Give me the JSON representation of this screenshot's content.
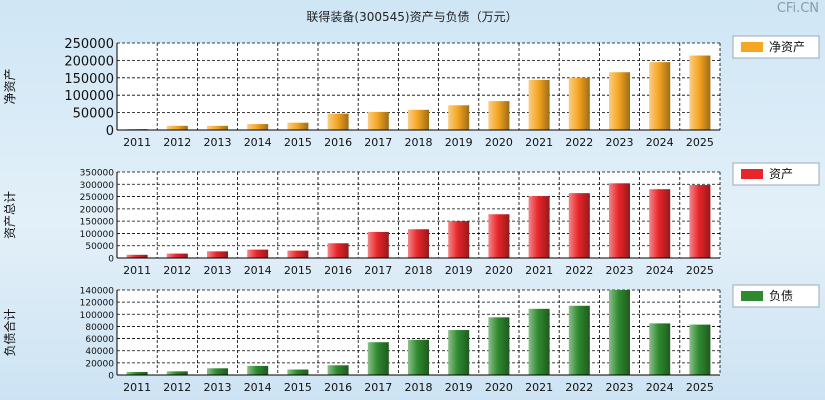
{
  "watermark": "CFi.CN",
  "colors": {
    "net_assets": "#f5a623",
    "total_assets": "#e8262a",
    "total_liabilities": "#2f8a2f",
    "legend_bg": "#ffffff"
  },
  "chart_data": {
    "title": "联得装备(300545)资产与负债（万元）",
    "type": "bar",
    "grid": true,
    "legend_position": "top-right",
    "categories": [
      "2011",
      "2012",
      "2013",
      "2014",
      "2015",
      "2016",
      "2017",
      "2018",
      "2019",
      "2020",
      "2021",
      "2022",
      "2023",
      "2024",
      "2025"
    ],
    "panels": [
      {
        "key": "net_assets",
        "ylabel": "净资产",
        "legend": "净资产",
        "ylim": [
          0,
          250000
        ],
        "yticks": [
          "0",
          "50000",
          "100000",
          "150000",
          "200000",
          "250000"
        ],
        "values": [
          2000,
          12000,
          12000,
          17000,
          21000,
          47000,
          52000,
          58000,
          71000,
          83000,
          144000,
          150000,
          166000,
          195000,
          214000
        ]
      },
      {
        "key": "total_assets",
        "ylabel": "资产总计",
        "legend": "资产",
        "ylim": [
          0,
          350000
        ],
        "yticks": [
          "0",
          "50000",
          "100000",
          "150000",
          "200000",
          "250000",
          "300000",
          "350000"
        ],
        "values": [
          13000,
          18000,
          27000,
          34000,
          30000,
          60000,
          106000,
          117000,
          150000,
          178000,
          252000,
          264000,
          304000,
          280000,
          297000
        ]
      },
      {
        "key": "total_liabilities",
        "ylabel": "负债合计",
        "legend": "负债",
        "ylim": [
          0,
          140000
        ],
        "yticks": [
          "0",
          "20000",
          "40000",
          "60000",
          "80000",
          "100000",
          "120000",
          "140000"
        ],
        "values": [
          5000,
          6000,
          11000,
          15000,
          9000,
          16000,
          54000,
          58000,
          74000,
          95000,
          109000,
          114000,
          140000,
          85000,
          83000
        ]
      }
    ]
  }
}
